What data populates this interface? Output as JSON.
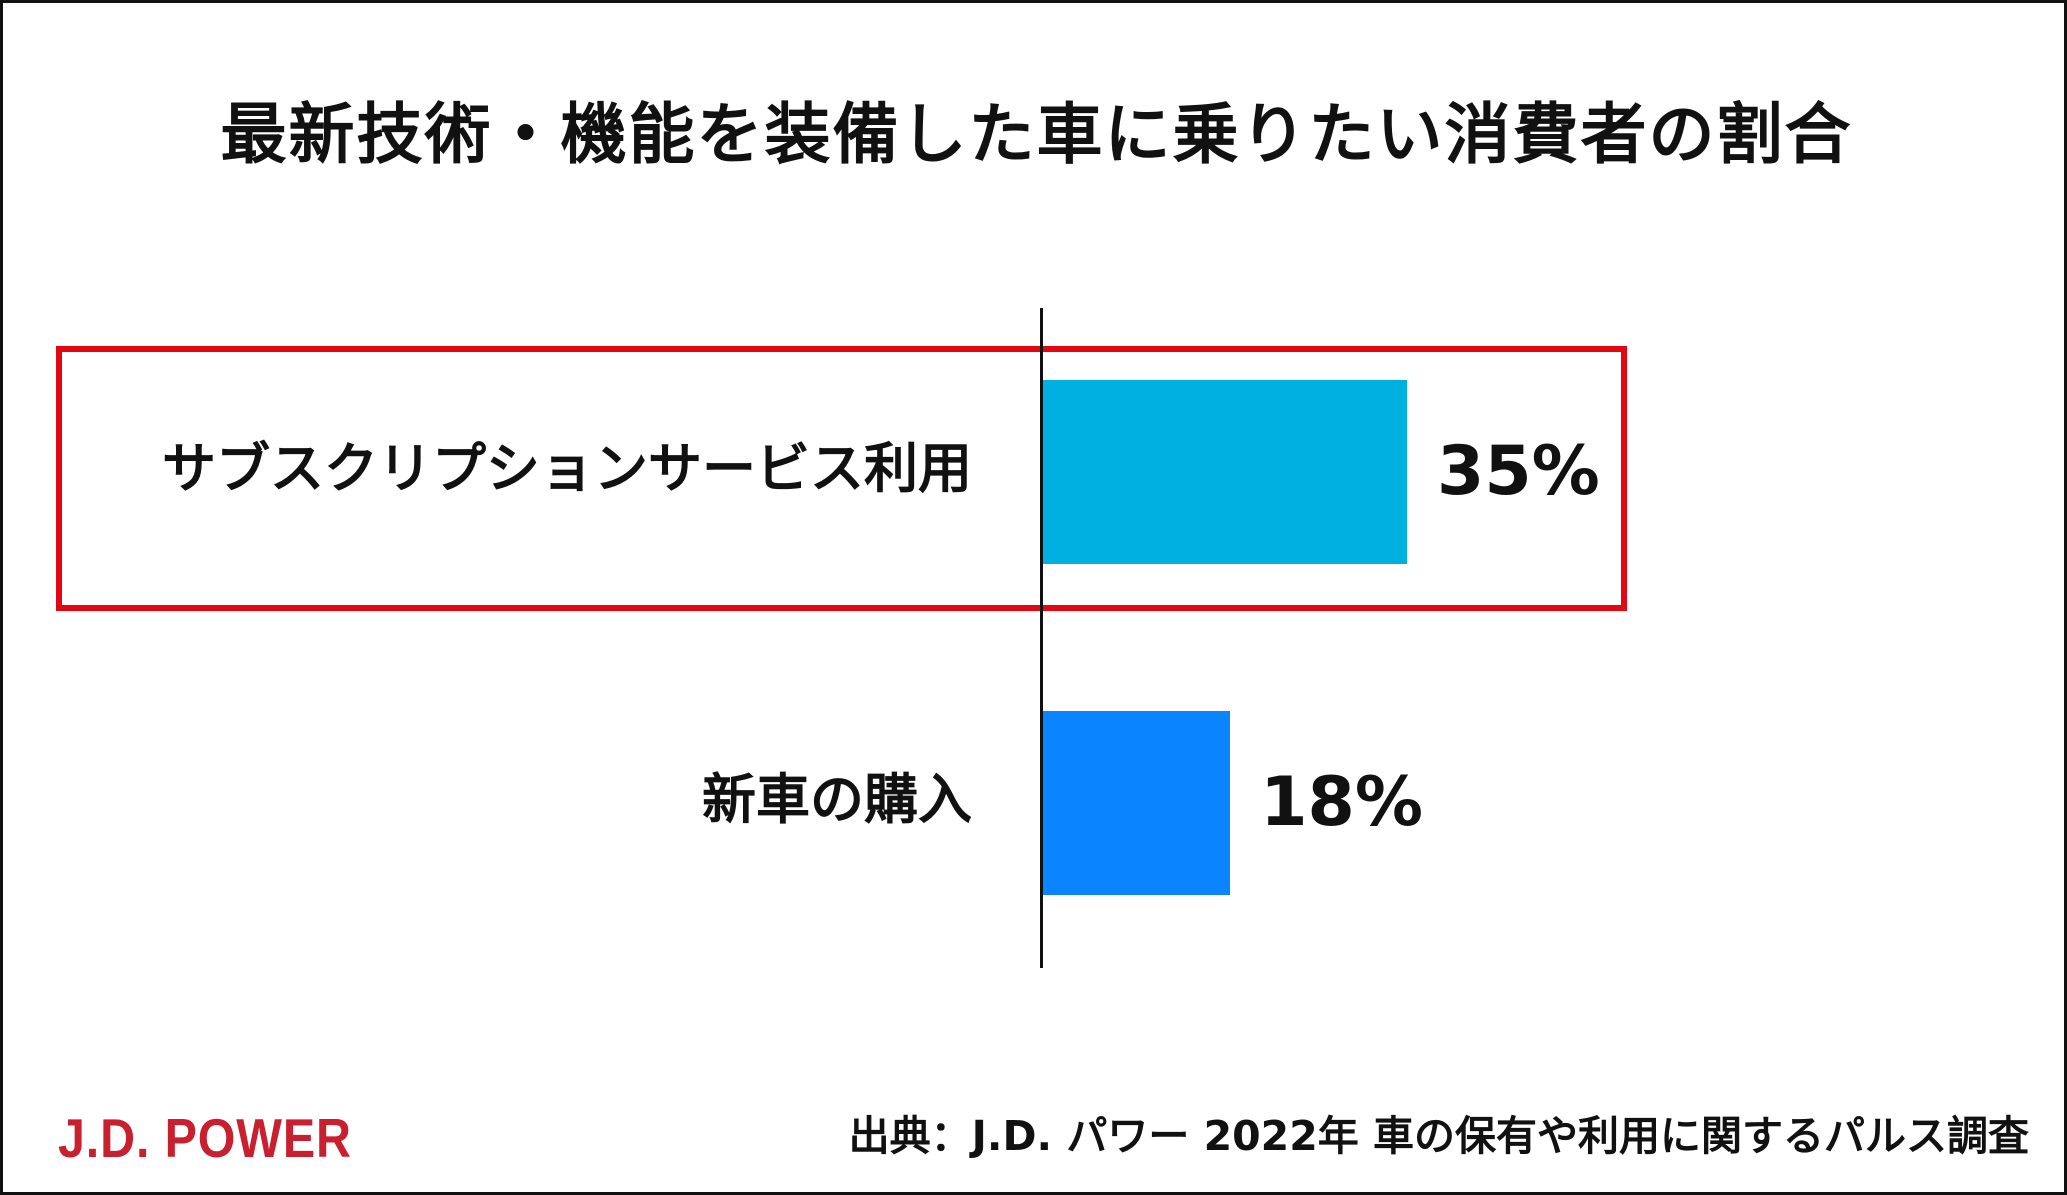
{
  "chart_data": {
    "type": "bar",
    "orientation": "horizontal",
    "title": "最新技術・機能を装備した車に乗りたい消費者の割合",
    "categories": [
      "サブスクリプションサービス利用",
      "新車の購入"
    ],
    "values": [
      35,
      18
    ],
    "value_labels": [
      "35%",
      "18%"
    ],
    "unit": "%",
    "bar_colors": [
      "#00b0e0",
      "#0a84ff"
    ],
    "highlight_color": "#e30613",
    "highlighted_category": "サブスクリプションサービス利用",
    "xlim": [
      0,
      100
    ],
    "grid": false,
    "legend": "none"
  },
  "footer": {
    "logo_text": "J.D. POWER",
    "logo_color": "#c8202f",
    "source": "出典：J.D. パワー 2022年 車の保有や利用に関するパルス調査"
  }
}
